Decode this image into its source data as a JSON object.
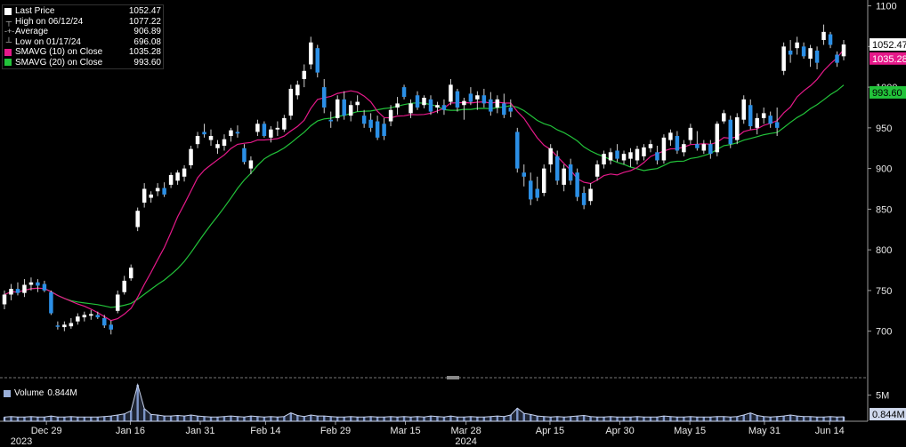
{
  "legend": {
    "items": [
      {
        "label": "Last Price",
        "value": "1052.47",
        "icon": "white-square-icon",
        "color": "#ffffff"
      },
      {
        "label": "High on 06/12/24",
        "value": "1077.22",
        "icon": "high-marker-icon"
      },
      {
        "label": "Average",
        "value": "906.89",
        "icon": "average-line-icon"
      },
      {
        "label": "Low on 01/17/24",
        "value": "696.08",
        "icon": "low-marker-icon"
      },
      {
        "label": "SMAVG (10)  on Close",
        "value": "1035.28",
        "icon": "magenta-square-icon",
        "color": "#e6198a"
      },
      {
        "label": "SMAVG (20)  on Close",
        "value": "993.60",
        "icon": "green-square-icon",
        "color": "#22c33a"
      }
    ]
  },
  "volume_legend": {
    "label": "Volume",
    "value": "0.844M"
  },
  "price_tags": {
    "last": "1052.47",
    "sma10": "1035.28",
    "sma20": "993.60"
  },
  "chart_data": {
    "type": "candlestick",
    "x_tick_labels": [
      "Dec 29",
      "Jan 16",
      "Jan 31",
      "Feb 14",
      "Feb 29",
      "Mar 15",
      "Mar 28",
      "Apr 15",
      "Apr 30",
      "May 15",
      "May 31",
      "Jun 14"
    ],
    "x_tick_dates": [
      "2023-12-29",
      "2024-01-16",
      "2024-01-31",
      "2024-02-14",
      "2024-02-29",
      "2024-03-15",
      "2024-03-28",
      "2024-04-15",
      "2024-04-30",
      "2024-05-15",
      "2024-05-31",
      "2024-06-14"
    ],
    "year_labels": [
      "2023",
      "2024"
    ],
    "y_ticks": [
      700,
      750,
      800,
      850,
      900,
      950,
      1000,
      1050,
      1100
    ],
    "ylim": [
      645,
      1105
    ],
    "volume_y_ticks_label": "5M",
    "volume_y_tick_value": 5,
    "volume_ylim": [
      0,
      7.5
    ],
    "candles": [
      {
        "o": 733,
        "h": 750,
        "l": 727,
        "c": 745
      },
      {
        "o": 745,
        "h": 758,
        "l": 738,
        "c": 752
      },
      {
        "o": 752,
        "h": 760,
        "l": 744,
        "c": 747
      },
      {
        "o": 747,
        "h": 764,
        "l": 742,
        "c": 757
      },
      {
        "o": 757,
        "h": 766,
        "l": 750,
        "c": 760
      },
      {
        "o": 760,
        "h": 764,
        "l": 748,
        "c": 756
      },
      {
        "o": 758,
        "h": 762,
        "l": 748,
        "c": 750
      },
      {
        "o": 748,
        "h": 750,
        "l": 720,
        "c": 722
      },
      {
        "o": 707,
        "h": 712,
        "l": 702,
        "c": 706
      },
      {
        "o": 705,
        "h": 712,
        "l": 700,
        "c": 708
      },
      {
        "o": 706,
        "h": 716,
        "l": 703,
        "c": 710
      },
      {
        "o": 712,
        "h": 722,
        "l": 708,
        "c": 718
      },
      {
        "o": 717,
        "h": 724,
        "l": 712,
        "c": 720
      },
      {
        "o": 719,
        "h": 726,
        "l": 714,
        "c": 721
      },
      {
        "o": 720,
        "h": 724,
        "l": 715,
        "c": 717
      },
      {
        "o": 716,
        "h": 720,
        "l": 704,
        "c": 707
      },
      {
        "o": 708,
        "h": 713,
        "l": 696,
        "c": 702
      },
      {
        "o": 725,
        "h": 750,
        "l": 722,
        "c": 745
      },
      {
        "o": 748,
        "h": 768,
        "l": 745,
        "c": 762
      },
      {
        "o": 765,
        "h": 782,
        "l": 762,
        "c": 778
      },
      {
        "o": 828,
        "h": 852,
        "l": 823,
        "c": 848
      },
      {
        "o": 858,
        "h": 882,
        "l": 852,
        "c": 875
      },
      {
        "o": 864,
        "h": 872,
        "l": 858,
        "c": 868
      },
      {
        "o": 872,
        "h": 882,
        "l": 866,
        "c": 876
      },
      {
        "o": 876,
        "h": 883,
        "l": 865,
        "c": 868
      },
      {
        "o": 880,
        "h": 895,
        "l": 876,
        "c": 892
      },
      {
        "o": 885,
        "h": 898,
        "l": 880,
        "c": 895
      },
      {
        "o": 890,
        "h": 904,
        "l": 884,
        "c": 900
      },
      {
        "o": 904,
        "h": 928,
        "l": 900,
        "c": 924
      },
      {
        "o": 930,
        "h": 945,
        "l": 925,
        "c": 940
      },
      {
        "o": 945,
        "h": 955,
        "l": 938,
        "c": 942
      },
      {
        "o": 935,
        "h": 948,
        "l": 928,
        "c": 940
      },
      {
        "o": 925,
        "h": 935,
        "l": 918,
        "c": 930
      },
      {
        "o": 928,
        "h": 942,
        "l": 922,
        "c": 936
      },
      {
        "o": 940,
        "h": 950,
        "l": 933,
        "c": 947
      },
      {
        "o": 945,
        "h": 953,
        "l": 938,
        "c": 943
      },
      {
        "o": 925,
        "h": 930,
        "l": 905,
        "c": 908
      },
      {
        "o": 900,
        "h": 915,
        "l": 893,
        "c": 910
      },
      {
        "o": 945,
        "h": 960,
        "l": 940,
        "c": 955
      },
      {
        "o": 955,
        "h": 958,
        "l": 938,
        "c": 940
      },
      {
        "o": 938,
        "h": 952,
        "l": 932,
        "c": 948
      },
      {
        "o": 948,
        "h": 958,
        "l": 940,
        "c": 950
      },
      {
        "o": 948,
        "h": 966,
        "l": 945,
        "c": 962
      },
      {
        "o": 965,
        "h": 1003,
        "l": 960,
        "c": 998
      },
      {
        "o": 990,
        "h": 1008,
        "l": 985,
        "c": 1003
      },
      {
        "o": 1010,
        "h": 1028,
        "l": 1000,
        "c": 1020
      },
      {
        "o": 1028,
        "h": 1062,
        "l": 1022,
        "c": 1055
      },
      {
        "o": 1048,
        "h": 1052,
        "l": 1012,
        "c": 1018
      },
      {
        "o": 1000,
        "h": 1010,
        "l": 968,
        "c": 975
      },
      {
        "o": 960,
        "h": 970,
        "l": 950,
        "c": 958
      },
      {
        "o": 962,
        "h": 990,
        "l": 958,
        "c": 985
      },
      {
        "o": 985,
        "h": 995,
        "l": 960,
        "c": 965
      },
      {
        "o": 965,
        "h": 983,
        "l": 958,
        "c": 978
      },
      {
        "o": 978,
        "h": 990,
        "l": 970,
        "c": 982
      },
      {
        "o": 965,
        "h": 972,
        "l": 950,
        "c": 955
      },
      {
        "o": 960,
        "h": 968,
        "l": 945,
        "c": 950
      },
      {
        "o": 958,
        "h": 965,
        "l": 935,
        "c": 938
      },
      {
        "o": 955,
        "h": 962,
        "l": 935,
        "c": 940
      },
      {
        "o": 958,
        "h": 978,
        "l": 952,
        "c": 972
      },
      {
        "o": 975,
        "h": 988,
        "l": 966,
        "c": 980
      },
      {
        "o": 1000,
        "h": 1003,
        "l": 985,
        "c": 988
      },
      {
        "o": 968,
        "h": 985,
        "l": 962,
        "c": 980
      },
      {
        "o": 990,
        "h": 995,
        "l": 972,
        "c": 975
      },
      {
        "o": 978,
        "h": 990,
        "l": 974,
        "c": 987
      },
      {
        "o": 985,
        "h": 990,
        "l": 966,
        "c": 970
      },
      {
        "o": 975,
        "h": 982,
        "l": 968,
        "c": 978
      },
      {
        "o": 978,
        "h": 985,
        "l": 966,
        "c": 972
      },
      {
        "o": 982,
        "h": 1010,
        "l": 978,
        "c": 1003
      },
      {
        "o": 995,
        "h": 998,
        "l": 970,
        "c": 975
      },
      {
        "o": 978,
        "h": 987,
        "l": 960,
        "c": 983
      },
      {
        "o": 992,
        "h": 1000,
        "l": 978,
        "c": 982
      },
      {
        "o": 985,
        "h": 995,
        "l": 972,
        "c": 990
      },
      {
        "o": 990,
        "h": 998,
        "l": 975,
        "c": 980
      },
      {
        "o": 985,
        "h": 994,
        "l": 965,
        "c": 970
      },
      {
        "o": 975,
        "h": 990,
        "l": 968,
        "c": 985
      },
      {
        "o": 980,
        "h": 992,
        "l": 962,
        "c": 966
      },
      {
        "o": 975,
        "h": 985,
        "l": 963,
        "c": 970
      },
      {
        "o": 945,
        "h": 950,
        "l": 895,
        "c": 900
      },
      {
        "o": 895,
        "h": 905,
        "l": 878,
        "c": 890
      },
      {
        "o": 885,
        "h": 895,
        "l": 855,
        "c": 862
      },
      {
        "o": 875,
        "h": 890,
        "l": 860,
        "c": 864
      },
      {
        "o": 870,
        "h": 905,
        "l": 866,
        "c": 900
      },
      {
        "o": 905,
        "h": 930,
        "l": 895,
        "c": 925
      },
      {
        "o": 915,
        "h": 922,
        "l": 880,
        "c": 885
      },
      {
        "o": 880,
        "h": 905,
        "l": 872,
        "c": 900
      },
      {
        "o": 905,
        "h": 912,
        "l": 880,
        "c": 885
      },
      {
        "o": 895,
        "h": 900,
        "l": 860,
        "c": 865
      },
      {
        "o": 870,
        "h": 878,
        "l": 850,
        "c": 855
      },
      {
        "o": 860,
        "h": 882,
        "l": 855,
        "c": 875
      },
      {
        "o": 890,
        "h": 910,
        "l": 885,
        "c": 905
      },
      {
        "o": 905,
        "h": 922,
        "l": 900,
        "c": 918
      },
      {
        "o": 910,
        "h": 925,
        "l": 905,
        "c": 920
      },
      {
        "o": 922,
        "h": 930,
        "l": 908,
        "c": 912
      },
      {
        "o": 910,
        "h": 922,
        "l": 905,
        "c": 918
      },
      {
        "o": 912,
        "h": 925,
        "l": 902,
        "c": 920
      },
      {
        "o": 910,
        "h": 928,
        "l": 905,
        "c": 924
      },
      {
        "o": 915,
        "h": 930,
        "l": 910,
        "c": 926
      },
      {
        "o": 925,
        "h": 935,
        "l": 920,
        "c": 930
      },
      {
        "o": 920,
        "h": 928,
        "l": 905,
        "c": 910
      },
      {
        "o": 910,
        "h": 942,
        "l": 906,
        "c": 938
      },
      {
        "o": 935,
        "h": 948,
        "l": 928,
        "c": 944
      },
      {
        "o": 940,
        "h": 946,
        "l": 918,
        "c": 922
      },
      {
        "o": 920,
        "h": 935,
        "l": 915,
        "c": 930
      },
      {
        "o": 935,
        "h": 955,
        "l": 930,
        "c": 950
      },
      {
        "o": 930,
        "h": 946,
        "l": 922,
        "c": 925
      },
      {
        "o": 922,
        "h": 935,
        "l": 918,
        "c": 930
      },
      {
        "o": 930,
        "h": 935,
        "l": 912,
        "c": 918
      },
      {
        "o": 920,
        "h": 958,
        "l": 915,
        "c": 955
      },
      {
        "o": 958,
        "h": 972,
        "l": 955,
        "c": 968
      },
      {
        "o": 960,
        "h": 965,
        "l": 925,
        "c": 930
      },
      {
        "o": 935,
        "h": 968,
        "l": 930,
        "c": 963
      },
      {
        "o": 960,
        "h": 990,
        "l": 955,
        "c": 985
      },
      {
        "o": 978,
        "h": 985,
        "l": 948,
        "c": 952
      },
      {
        "o": 950,
        "h": 968,
        "l": 942,
        "c": 962
      },
      {
        "o": 962,
        "h": 975,
        "l": 955,
        "c": 968
      },
      {
        "o": 965,
        "h": 970,
        "l": 950,
        "c": 955
      },
      {
        "o": 957,
        "h": 975,
        "l": 940,
        "c": 950
      },
      {
        "o": 1020,
        "h": 1055,
        "l": 1015,
        "c": 1050
      },
      {
        "o": 1045,
        "h": 1058,
        "l": 1030,
        "c": 1040
      },
      {
        "o": 1048,
        "h": 1062,
        "l": 1040,
        "c": 1055
      },
      {
        "o": 1050,
        "h": 1055,
        "l": 1035,
        "c": 1038
      },
      {
        "o": 1035,
        "h": 1052,
        "l": 1025,
        "c": 1048
      },
      {
        "o": 1045,
        "h": 1050,
        "l": 1022,
        "c": 1030
      },
      {
        "o": 1058,
        "h": 1077,
        "l": 1052,
        "c": 1068
      },
      {
        "o": 1065,
        "h": 1068,
        "l": 1048,
        "c": 1052
      },
      {
        "o": 1040,
        "h": 1044,
        "l": 1025,
        "c": 1030
      },
      {
        "o": 1038,
        "h": 1058,
        "l": 1033,
        "c": 1052.47
      }
    ],
    "volume": [
      0.8,
      0.9,
      0.8,
      0.8,
      0.9,
      0.8,
      0.8,
      1.0,
      0.8,
      0.8,
      0.9,
      0.8,
      0.8,
      0.8,
      0.8,
      0.9,
      1.0,
      1.2,
      1.4,
      2.0,
      7.0,
      2.4,
      1.3,
      1.2,
      1.0,
      1.0,
      1.1,
      1.0,
      1.2,
      1.0,
      0.9,
      0.8,
      0.8,
      0.9,
      1.0,
      0.9,
      0.8,
      1.0,
      0.9,
      0.8,
      0.9,
      0.8,
      0.9,
      1.6,
      1.1,
      0.9,
      1.2,
      1.0,
      1.0,
      0.9,
      0.8,
      0.8,
      0.9,
      0.8,
      0.8,
      0.9,
      0.8,
      0.8,
      0.9,
      0.8,
      0.9,
      0.8,
      0.9,
      0.8,
      1.0,
      0.9,
      0.8,
      1.0,
      0.8,
      0.8,
      0.9,
      0.8,
      0.8,
      0.9,
      1.0,
      0.9,
      1.2,
      2.5,
      1.5,
      1.3,
      1.0,
      0.9,
      0.8,
      0.9,
      0.8,
      0.9,
      1.0,
      1.1,
      0.9,
      0.8,
      0.8,
      0.9,
      0.8,
      0.8,
      0.8,
      0.9,
      0.8,
      0.8,
      0.8,
      1.0,
      0.9,
      0.8,
      0.8,
      0.9,
      0.8,
      0.8,
      0.8,
      0.9,
      0.9,
      0.8,
      0.9,
      1.2,
      1.6,
      1.1,
      0.9,
      0.8,
      0.9,
      1.0,
      1.2,
      1.0,
      0.9,
      0.9,
      0.8,
      0.8,
      0.9,
      0.8,
      0.844
    ],
    "sma10_label": "SMAVG (10)  on Close",
    "sma20_label": "SMAVG (20)  on Close",
    "sma10_color": "#e6198a",
    "sma20_color": "#22c33a",
    "up_color": "#ffffff",
    "down_color": "#2b8fe6"
  }
}
